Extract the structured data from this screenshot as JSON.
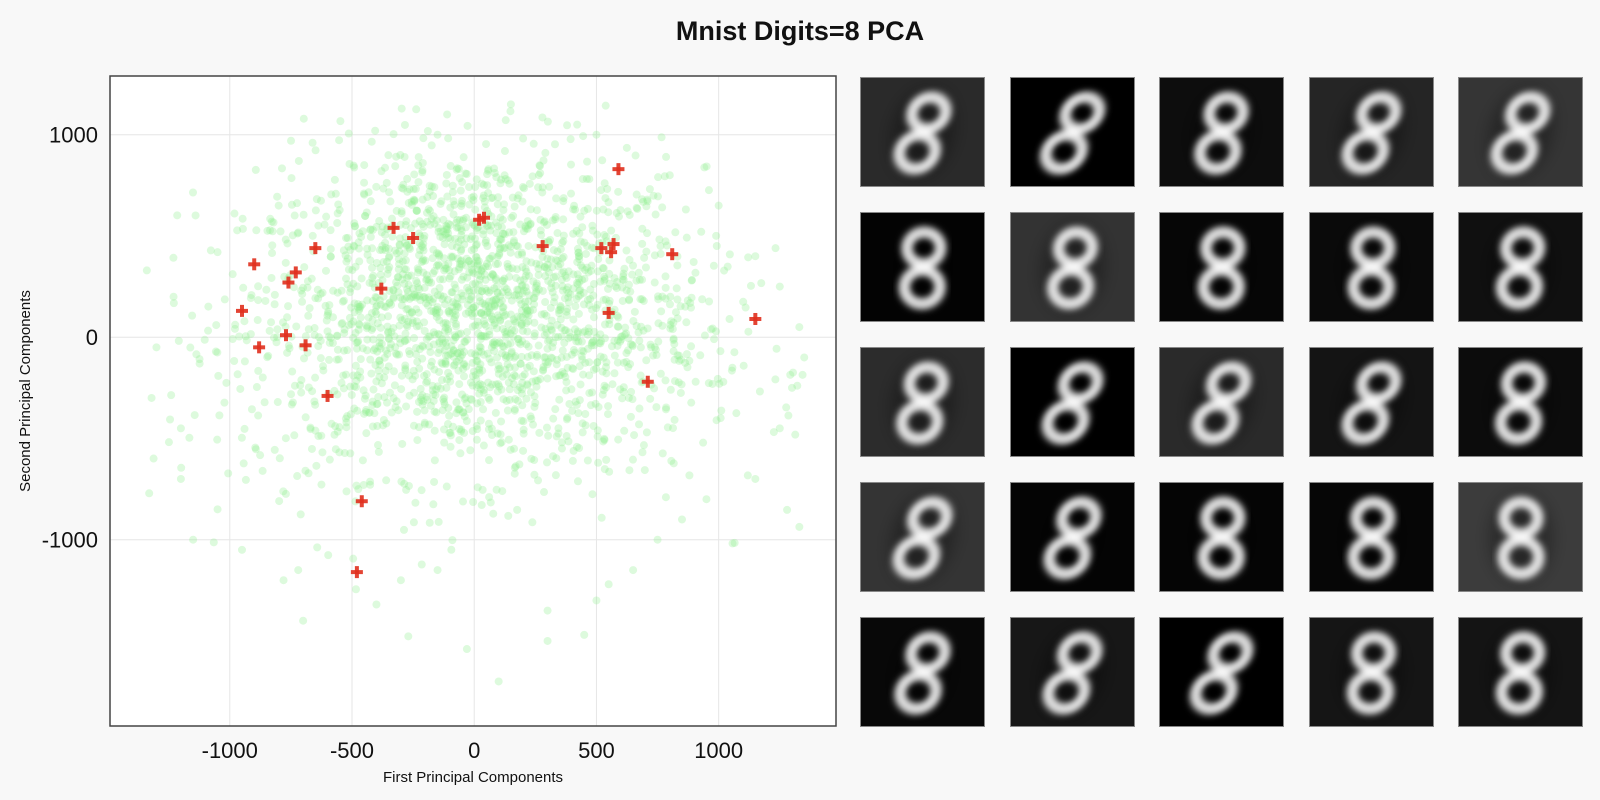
{
  "title": "Mnist Digits=8 PCA",
  "colors": {
    "background": "#f8f8f8",
    "plot_background": "#ffffff",
    "cloud_points": "#90ee90",
    "highlight_markers": "#e0301e",
    "grid": "#e6e6e6",
    "frame": "#444444"
  },
  "chart_data": {
    "type": "scatter",
    "title": "Mnist Digits=8 PCA",
    "xlabel": "First Principal  Components",
    "ylabel": "Second Principal  Components",
    "xlim": [
      -1490,
      1480
    ],
    "ylim": [
      -1920,
      1290
    ],
    "xticks": [
      -1000,
      -500,
      0,
      500,
      1000
    ],
    "xtick_labels": [
      "-1000",
      "-500",
      "0",
      "500",
      "1000"
    ],
    "yticks": [
      -1000,
      0,
      1000
    ],
    "ytick_labels": [
      "-1000",
      "0",
      "1000"
    ],
    "grid": true,
    "series": [
      {
        "marker": "circle",
        "color": "#90ee90",
        "alpha": 0.3,
        "n_points": 5800,
        "x_range": [
          -1350,
          1350
        ],
        "y_range": [
          -1780,
          1150
        ],
        "points": [
          [
            -1200,
            -700
          ],
          [
            -1150,
            -1000
          ],
          [
            -1050,
            -850
          ],
          [
            -950,
            -1050
          ],
          [
            -780,
            -1200
          ],
          [
            -700,
            -1400
          ],
          [
            -720,
            -1150
          ],
          [
            -400,
            -1320
          ],
          [
            -300,
            -1200
          ],
          [
            -150,
            -1150
          ],
          [
            -30,
            -1540
          ],
          [
            100,
            -1700
          ],
          [
            300,
            -1500
          ],
          [
            300,
            -1350
          ],
          [
            450,
            -1470
          ],
          [
            500,
            -1300
          ],
          [
            550,
            -1220
          ],
          [
            650,
            -1150
          ],
          [
            750,
            -1000
          ],
          [
            850,
            -900
          ],
          [
            950,
            -800
          ],
          [
            1150,
            -700
          ],
          [
            1250,
            -450
          ],
          [
            1300,
            -250
          ],
          [
            1350,
            -100
          ],
          [
            1330,
            50
          ],
          [
            1250,
            250
          ],
          [
            1150,
            400
          ],
          [
            1000,
            650
          ],
          [
            800,
            800
          ],
          [
            500,
            1000
          ],
          [
            150,
            1150
          ],
          [
            -150,
            1000
          ],
          [
            -450,
            850
          ],
          [
            -800,
            650
          ],
          [
            -1050,
            420
          ],
          [
            -1230,
            200
          ],
          [
            -1300,
            -50
          ],
          [
            -1320,
            -300
          ],
          [
            -1200,
            -450
          ]
        ]
      },
      {
        "marker": "cross",
        "color": "#e0301e",
        "points": [
          [
            590,
            830
          ],
          [
            -330,
            540
          ],
          [
            -250,
            490
          ],
          [
            40,
            590
          ],
          [
            20,
            580
          ],
          [
            -650,
            440
          ],
          [
            -900,
            360
          ],
          [
            -730,
            320
          ],
          [
            -760,
            270
          ],
          [
            -380,
            240
          ],
          [
            280,
            450
          ],
          [
            520,
            440
          ],
          [
            570,
            460
          ],
          [
            560,
            420
          ],
          [
            810,
            410
          ],
          [
            -950,
            130
          ],
          [
            550,
            120
          ],
          [
            1150,
            90
          ],
          [
            -770,
            10
          ],
          [
            -690,
            -40
          ],
          [
            -880,
            -50
          ],
          [
            710,
            -220
          ],
          [
            -600,
            -290
          ],
          [
            -460,
            -810
          ],
          [
            -480,
            -1160
          ]
        ]
      }
    ]
  },
  "thumbnails": {
    "rows": 5,
    "cols": 5,
    "backgrounds": [
      "#2a2a2a",
      "#000000",
      "#0d0d0d",
      "#252525",
      "#353535",
      "#030303",
      "#333333",
      "#060606",
      "#0a0a0a",
      "#101010",
      "#2c2c2c",
      "#000000",
      "#2a2a2a",
      "#141414",
      "#0c0c0c",
      "#343434",
      "#040404",
      "#050505",
      "#060606",
      "#3c3c3c",
      "#080808",
      "#171717",
      "#000000",
      "#151515",
      "#141414"
    ],
    "slants": [
      0.35,
      0.55,
      0.25,
      0.4,
      0.4,
      0.05,
      0.15,
      0.05,
      0.05,
      0.1,
      0.2,
      0.45,
      0.4,
      0.4,
      0.15,
      0.4,
      0.35,
      0.05,
      0.05,
      0.0,
      0.3,
      0.4,
      0.5,
      0.1,
      0.1
    ]
  }
}
